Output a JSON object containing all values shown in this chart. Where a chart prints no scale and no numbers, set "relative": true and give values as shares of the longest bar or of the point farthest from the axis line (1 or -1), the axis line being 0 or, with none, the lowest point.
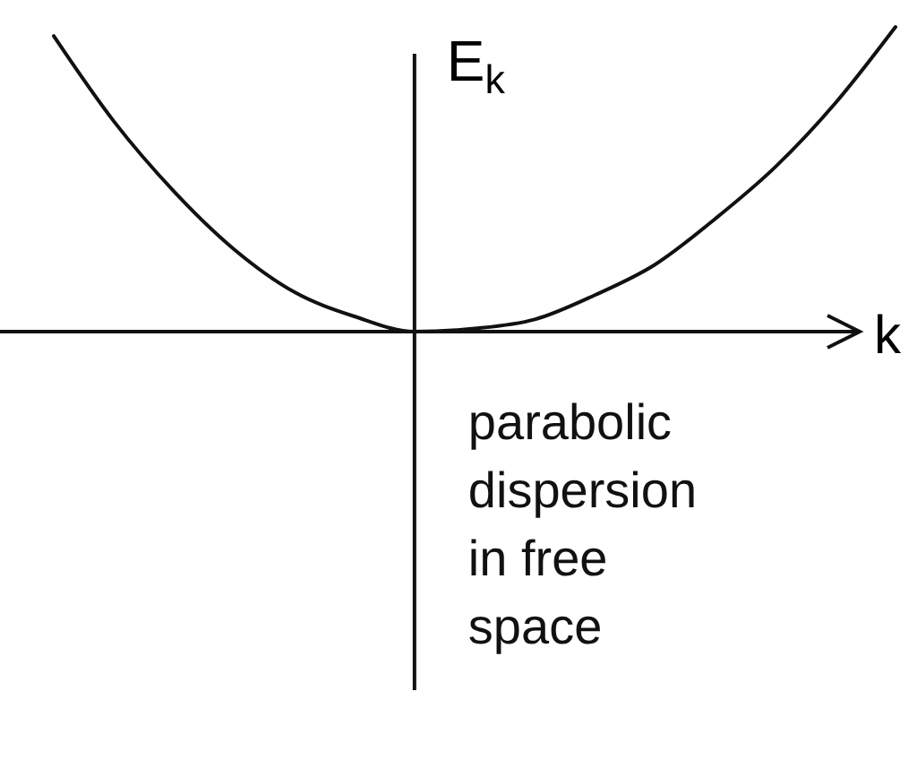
{
  "chart_data": {
    "type": "line",
    "relative": true,
    "xlabel": "k",
    "ylabel": "E$_{k}$",
    "categories": [
      null,
      null,
      null,
      null,
      null,
      null,
      null,
      null,
      null,
      null,
      null,
      null,
      null,
      null,
      null
    ],
    "series": [
      {
        "color": "#111111",
        "values": [
          0.97,
          0.69,
          0.46,
          0.27,
          0.13,
          0.05,
          0.0,
          0.01,
          0.04,
          0.12,
          0.22,
          0.37,
          0.54,
          0.75,
          1.0
        ]
      }
    ],
    "annotations": [
      "parabolic dispersion in free space"
    ]
  }
}
